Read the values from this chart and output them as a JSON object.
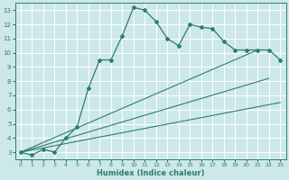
{
  "xlabel": "Humidex (Indice chaleur)",
  "ylabel": "",
  "background_color": "#cde8e8",
  "grid_color": "#b0d8d8",
  "line_color": "#2e7d6e",
  "xlim": [
    -0.5,
    23.5
  ],
  "ylim": [
    2.5,
    13.5
  ],
  "yticks": [
    3,
    4,
    5,
    6,
    7,
    8,
    9,
    10,
    11,
    12,
    13
  ],
  "xticks": [
    0,
    1,
    2,
    3,
    4,
    5,
    6,
    7,
    8,
    9,
    10,
    11,
    12,
    13,
    14,
    15,
    16,
    17,
    18,
    19,
    20,
    21,
    22,
    23
  ],
  "main_x": [
    0,
    1,
    2,
    3,
    4,
    5,
    6,
    7,
    8,
    9,
    10,
    11,
    12,
    13,
    14,
    15,
    16,
    17,
    18,
    19,
    20,
    21,
    22,
    23
  ],
  "main_y": [
    3.0,
    2.8,
    3.2,
    3.0,
    4.0,
    4.8,
    7.5,
    9.5,
    9.5,
    11.2,
    13.2,
    13.0,
    12.2,
    11.0,
    10.5,
    12.0,
    11.8,
    11.7,
    10.8,
    10.2,
    10.2,
    10.2,
    10.2,
    9.5
  ],
  "line1_x": [
    0,
    23
  ],
  "line1_y": [
    3.0,
    6.5
  ],
  "line2_x": [
    0,
    22
  ],
  "line2_y": [
    3.0,
    8.2
  ],
  "line3_x": [
    0,
    21
  ],
  "line3_y": [
    3.0,
    10.2
  ]
}
